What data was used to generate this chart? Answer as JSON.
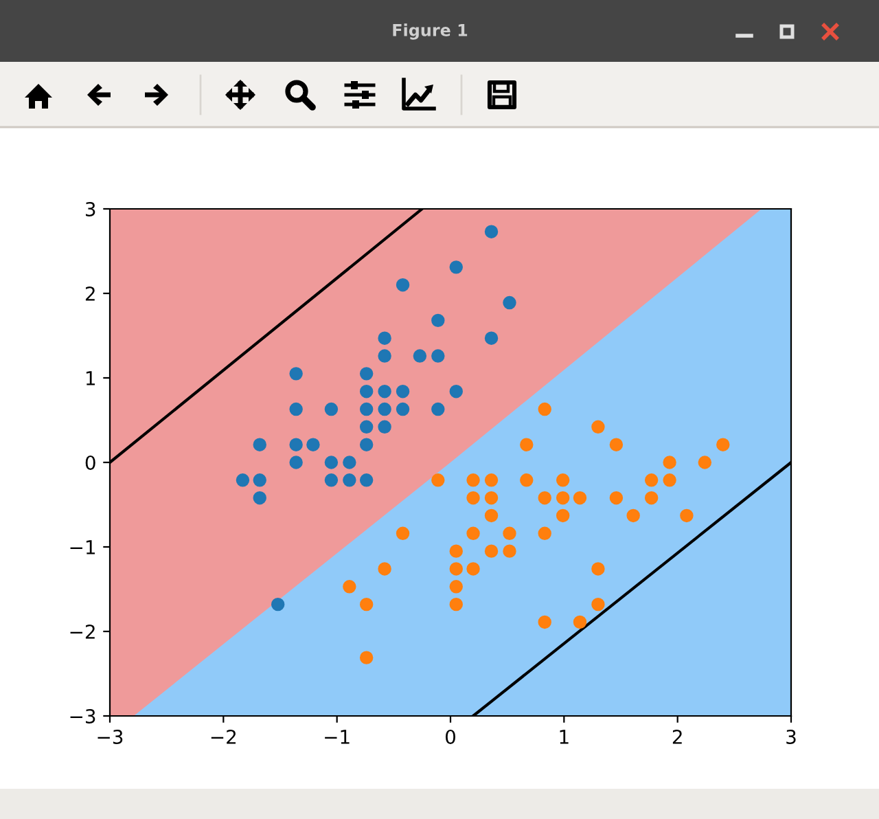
{
  "chart_data": {
    "type": "scatter",
    "title": "Figure 1",
    "xlim": [
      -3,
      3
    ],
    "ylim": [
      -3,
      3
    ],
    "xticks": [
      -3,
      -2,
      -1,
      0,
      1,
      2,
      3
    ],
    "yticks": [
      -3,
      -2,
      -1,
      0,
      1,
      2,
      3
    ],
    "grid": false,
    "bands": [
      {
        "axis": "y",
        "from": 0,
        "to": 3,
        "color": "#ef9a9a"
      },
      {
        "axis": "y",
        "from": -3,
        "to": 0,
        "color": "#90caf9"
      }
    ],
    "series": [
      {
        "type": "area",
        "color": "#ef9a9a",
        "x": [
          -3,
          -2.79,
          0
        ],
        "values": [
          -3,
          -3,
          0
        ]
      },
      {
        "type": "area",
        "color": "#90caf9",
        "x": [
          0,
          2.74,
          3
        ],
        "values": [
          0,
          3,
          3
        ]
      },
      {
        "type": "line",
        "color": "#000000",
        "x": [
          -3,
          -0.25
        ],
        "values": [
          0,
          3
        ]
      },
      {
        "type": "line",
        "color": "#000000",
        "x": [
          0.2,
          3
        ],
        "values": [
          -3,
          0
        ]
      },
      {
        "color": "#1f77b4",
        "marker": "circle",
        "x": [
          -0.58,
          -0.89,
          -1.21,
          -1.36,
          -0.74,
          -0.11,
          -1.36,
          -0.74,
          -1.68,
          -0.89,
          -0.11,
          -1.05,
          -1.05,
          -1.83,
          0.52,
          0.36,
          0.36,
          -0.58,
          -0.11,
          -0.58,
          -1.36,
          -0.58,
          -0.74,
          -0.42,
          -0.42,
          -1.05,
          -0.42,
          0.05,
          -0.74,
          0.05,
          -1.68,
          -0.58,
          -0.74,
          -1.52,
          -1.68,
          -1.36,
          -0.27,
          -0.74
        ],
        "values": [
          0.84,
          -0.21,
          0.21,
          0.0,
          1.05,
          1.68,
          0.63,
          0.63,
          -0.42,
          0.0,
          1.26,
          0.63,
          -0.21,
          -0.21,
          1.89,
          2.73,
          1.47,
          1.47,
          0.63,
          1.26,
          1.05,
          0.42,
          -0.21,
          0.84,
          0.63,
          0.0,
          2.1,
          2.31,
          0.21,
          0.84,
          -0.21,
          0.63,
          0.84,
          -1.68,
          0.21,
          0.21,
          1.26,
          0.42
        ]
      },
      {
        "color": "#ff7f0e",
        "marker": "circle",
        "x": [
          2.4,
          1.46,
          2.24,
          0.05,
          1.61,
          0.36,
          1.3,
          -0.89,
          1.77,
          -0.42,
          -0.74,
          0.67,
          0.83,
          0.99,
          0.2,
          1.93,
          0.2,
          0.52,
          1.14,
          0.2,
          0.67,
          0.99,
          1.3,
          1.46,
          1.77,
          2.08,
          1.93,
          0.83,
          0.36,
          0.05,
          0.83,
          -0.11,
          0.83,
          1.3,
          0.05,
          0.05,
          0.99,
          0.52,
          -0.74,
          0.2,
          0.36,
          0.36,
          1.14,
          -0.58
        ],
        "values": [
          0.21,
          0.21,
          0.0,
          -1.68,
          -0.63,
          -0.63,
          0.42,
          -1.47,
          -0.42,
          -0.84,
          -2.31,
          -0.21,
          -1.89,
          -0.42,
          -0.42,
          0.0,
          -0.21,
          -0.84,
          -1.89,
          -1.26,
          0.21,
          -0.63,
          -1.26,
          -0.42,
          -0.21,
          -0.63,
          -0.21,
          -0.42,
          -1.05,
          -1.47,
          -0.84,
          -0.21,
          0.63,
          -1.68,
          -1.26,
          -1.05,
          -0.21,
          -1.05,
          -1.68,
          -0.84,
          -0.21,
          -0.42,
          -0.42,
          -1.26
        ]
      }
    ]
  }
}
